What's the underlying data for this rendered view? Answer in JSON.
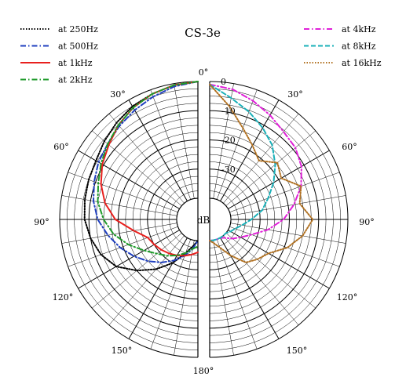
{
  "chart_data": {
    "type": "polar",
    "title": "CS-3e",
    "radial_unit": "dB",
    "radial_range": [
      -40,
      0
    ],
    "radial_ticks": [
      "0",
      "-10",
      "-20",
      "-30"
    ],
    "angle_ticks": [
      "0°",
      "30°",
      "60°",
      "90°",
      "120°",
      "150°",
      "180°",
      "30°",
      "60°",
      "90°",
      "120°",
      "150°"
    ],
    "grid": true,
    "legend_left": [
      "at 250Hz",
      "at 500Hz",
      "at 1kHz",
      "at 2kHz"
    ],
    "legend_right": [
      "at 4kHz",
      "at 8kHz",
      "at 16kHz"
    ],
    "series": [
      {
        "name": "at 250Hz",
        "color": "#000000",
        "dash": "dotted",
        "half": "left",
        "angles": [
          0,
          10,
          20,
          30,
          40,
          50,
          60,
          70,
          80,
          90,
          100,
          110,
          120,
          130,
          140,
          150,
          160,
          170,
          180
        ],
        "db": [
          0,
          -0.5,
          -1.5,
          -2.5,
          -4,
          -5.5,
          -7,
          -7.5,
          -8,
          -8.5,
          -10,
          -12,
          -15,
          -20,
          -25,
          -30,
          -35,
          -38,
          -40
        ]
      },
      {
        "name": "at 500Hz",
        "color": "#1f3fbf",
        "dash": "dash-dot",
        "half": "left",
        "angles": [
          0,
          10,
          20,
          30,
          40,
          50,
          60,
          70,
          80,
          90,
          100,
          110,
          120,
          130,
          140,
          150,
          160,
          170,
          180
        ],
        "db": [
          0,
          -1,
          -2.5,
          -4,
          -5.5,
          -7,
          -8,
          -9.5,
          -11,
          -13,
          -16,
          -19,
          -22,
          -25,
          -28,
          -31,
          -34,
          -37,
          -40
        ]
      },
      {
        "name": "at 1kHz",
        "color": "#e8201e",
        "dash": "solid",
        "half": "left",
        "angles": [
          0,
          10,
          20,
          30,
          40,
          50,
          60,
          70,
          80,
          90,
          100,
          110,
          120,
          130,
          140,
          150,
          160,
          170,
          180
        ],
        "db": [
          0,
          -0.5,
          -1.5,
          -3,
          -5,
          -7.5,
          -9.5,
          -12,
          -15,
          -19,
          -25,
          -29,
          -30,
          -31,
          -32,
          -33,
          -34,
          -35,
          -36
        ]
      },
      {
        "name": "at 2kHz",
        "color": "#1e9a2a",
        "dash": "dash-dot",
        "half": "left",
        "angles": [
          0,
          10,
          20,
          30,
          40,
          50,
          60,
          70,
          80,
          90,
          100,
          110,
          120,
          130,
          140,
          150,
          160,
          170,
          180
        ],
        "db": [
          0,
          -0.5,
          -1.5,
          -3,
          -5,
          -7,
          -9,
          -11,
          -12.5,
          -15,
          -18,
          -22,
          -26,
          -29,
          -31,
          -33,
          -35,
          -37,
          -38
        ]
      },
      {
        "name": "at 4kHz",
        "color": "#e020d8",
        "dash": "dash-dot",
        "half": "right",
        "angles": [
          0,
          10,
          20,
          30,
          40,
          50,
          60,
          70,
          80,
          90,
          100,
          110,
          120,
          130,
          140,
          150,
          160,
          170,
          180
        ],
        "db": [
          -1,
          -2,
          -4,
          -6,
          -8,
          -9,
          -11,
          -14,
          -18,
          -22,
          -27,
          -32,
          -35,
          -37,
          -39,
          -40,
          -40,
          -40,
          -40
        ]
      },
      {
        "name": "at 8kHz",
        "color": "#1ab0b8",
        "dash": "dashed",
        "half": "right",
        "angles": [
          0,
          10,
          20,
          30,
          40,
          50,
          60,
          70,
          80,
          90,
          100,
          110,
          120,
          130,
          140,
          150,
          160,
          170,
          180
        ],
        "db": [
          -1,
          -5,
          -8,
          -11,
          -14,
          -18,
          -22,
          -26,
          -29,
          -33,
          -36,
          -38,
          -39,
          -40,
          -40,
          -40,
          -40,
          -40,
          -40
        ]
      },
      {
        "name": "at 16kHz",
        "color": "#b07020",
        "dash": "dotted",
        "half": "right",
        "angles": [
          0,
          10,
          20,
          30,
          40,
          50,
          60,
          70,
          80,
          90,
          100,
          110,
          120,
          130,
          140,
          150,
          160,
          170,
          180
        ],
        "db": [
          -1,
          -8,
          -14,
          -18,
          -21,
          -17,
          -19,
          -14,
          -16,
          -12,
          -15,
          -19,
          -24,
          -26,
          -28,
          -33,
          -37,
          -39,
          -40
        ]
      }
    ]
  }
}
